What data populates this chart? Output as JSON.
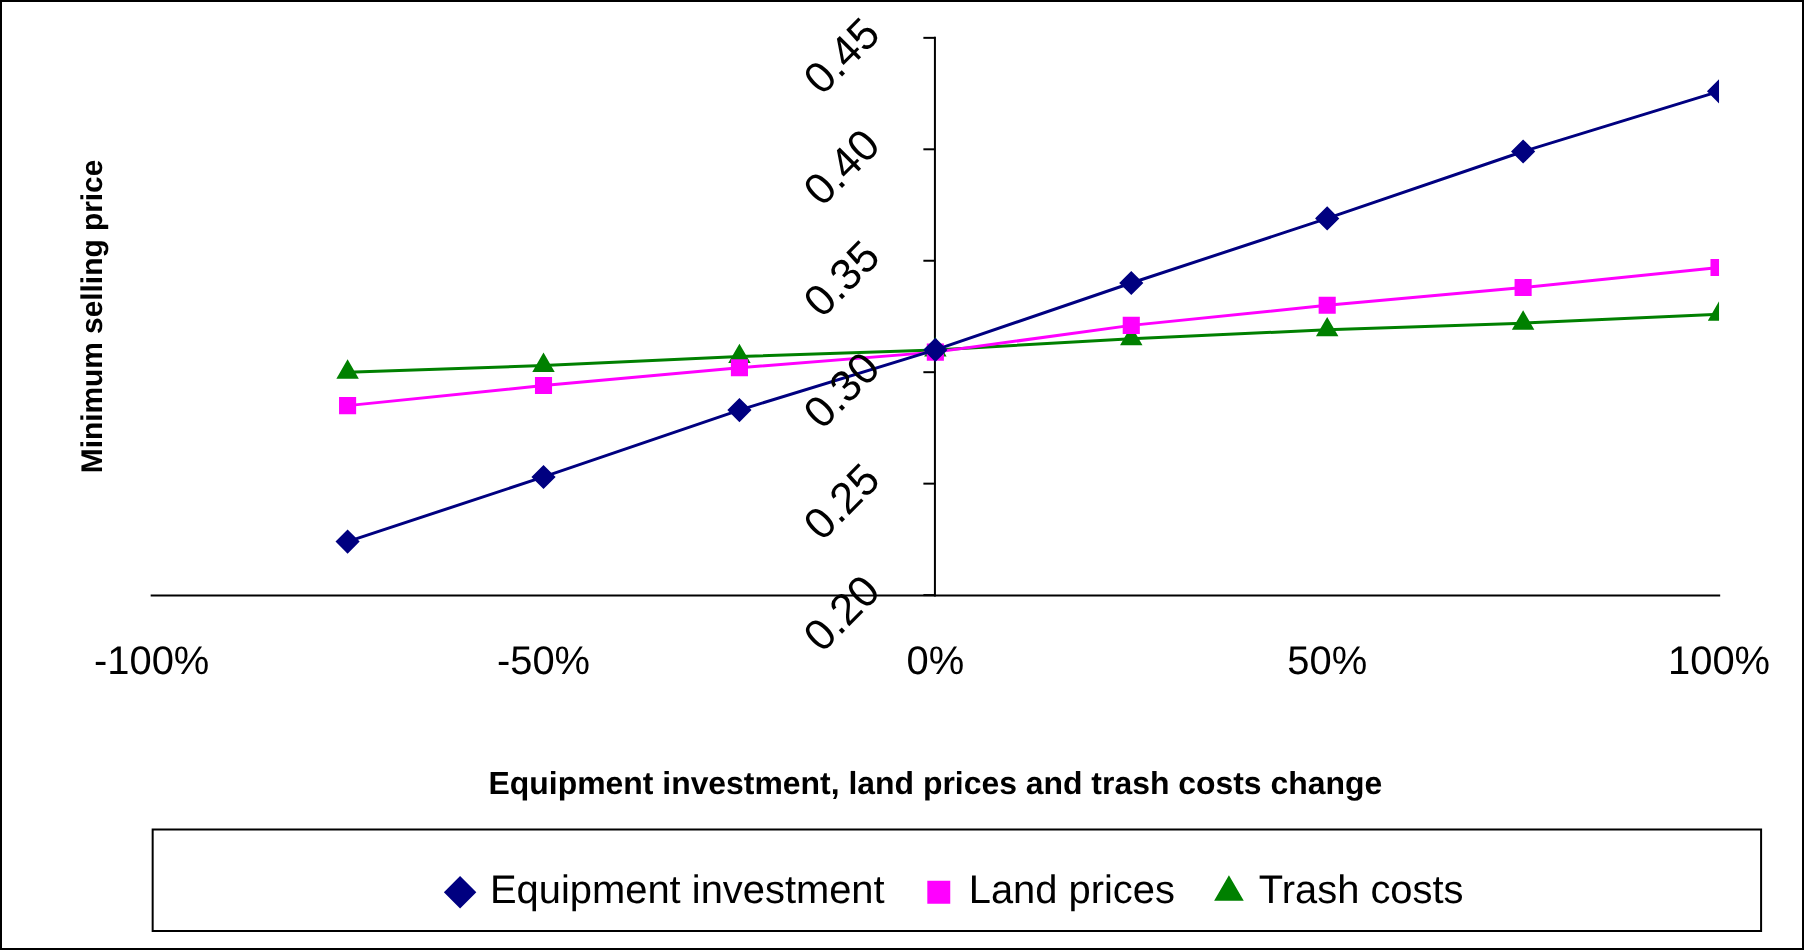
{
  "chart_data": {
    "type": "line",
    "xlabel": "Equipment investment, land prices and trash costs change",
    "ylabel": "Minimum selling price",
    "x": [
      -75,
      -50,
      -25,
      0,
      25,
      50,
      75,
      100
    ],
    "xlim": [
      -100,
      100
    ],
    "xticks": [
      {
        "value": -100,
        "label": "-100%"
      },
      {
        "value": -50,
        "label": "-50%"
      },
      {
        "value": 0,
        "label": "0%"
      },
      {
        "value": 50,
        "label": "50%"
      },
      {
        "value": 100,
        "label": "100%"
      }
    ],
    "ylim": [
      0.2,
      0.45
    ],
    "yticks": [
      {
        "value": 0.2,
        "label": "0.20"
      },
      {
        "value": 0.25,
        "label": "0.25"
      },
      {
        "value": 0.3,
        "label": "0.30"
      },
      {
        "value": 0.35,
        "label": "0.35"
      },
      {
        "value": 0.4,
        "label": "0.40"
      },
      {
        "value": 0.45,
        "label": "0.45"
      }
    ],
    "grid": false,
    "legend": "bottom",
    "series": [
      {
        "name": "Equipment investment",
        "color": "#000080",
        "marker": "diamond",
        "values": [
          0.224,
          0.253,
          0.283,
          0.31,
          0.34,
          0.369,
          0.399,
          0.426
        ]
      },
      {
        "name": "Land prices",
        "color": "#ff00ff",
        "marker": "square",
        "values": [
          0.285,
          0.294,
          0.302,
          0.309,
          0.321,
          0.33,
          0.338,
          0.347
        ]
      },
      {
        "name": "Trash costs",
        "color": "#008000",
        "marker": "triangle",
        "values": [
          0.3,
          0.303,
          0.307,
          0.31,
          0.315,
          0.319,
          0.322,
          0.326
        ]
      }
    ]
  }
}
